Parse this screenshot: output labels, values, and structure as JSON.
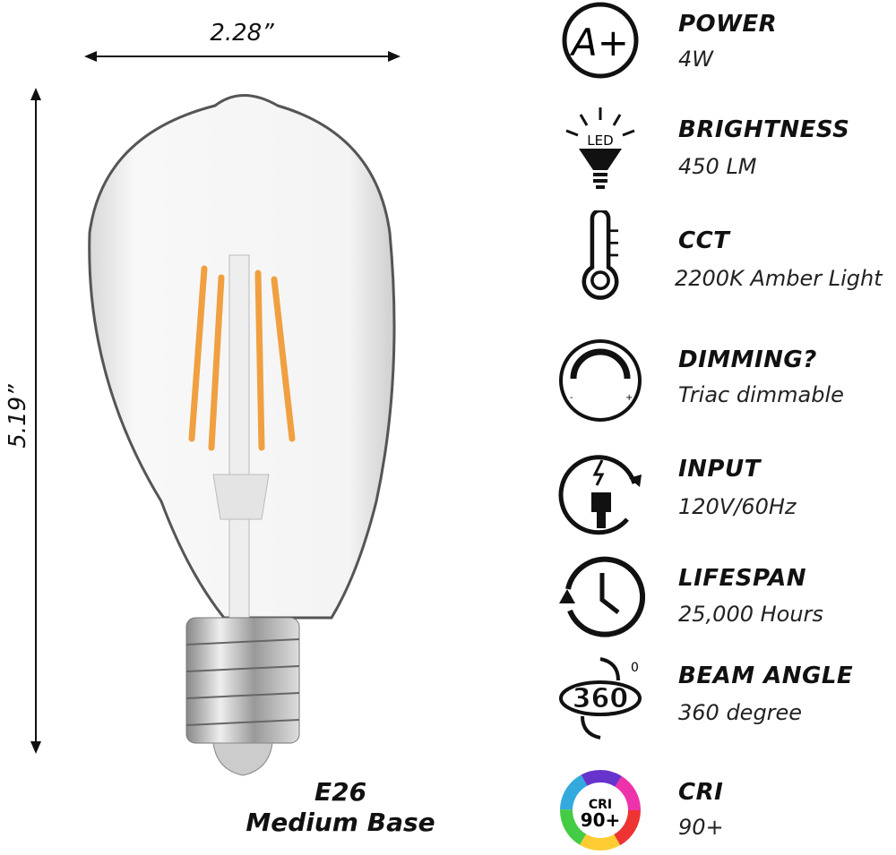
{
  "dimensions": {
    "width": "2.28”",
    "height": "5.19”"
  },
  "base": {
    "line1": "E26",
    "line2": "Medium Base"
  },
  "specs": [
    {
      "icon": "a-plus-icon",
      "label": "POWER",
      "value": "4W"
    },
    {
      "icon": "led-bulb-icon",
      "label": "BRIGHTNESS",
      "value": "450 LM",
      "icon_text": "LED"
    },
    {
      "icon": "thermometer-icon",
      "label": "CCT",
      "value": "2200K Amber Light"
    },
    {
      "icon": "dimmer-icon",
      "label": "DIMMING?",
      "value": "Triac dimmable"
    },
    {
      "icon": "plug-icon",
      "label": "INPUT",
      "value": "120V/60Hz"
    },
    {
      "icon": "clock-icon",
      "label": "LIFESPAN",
      "value": "25,000 Hours"
    },
    {
      "icon": "360-rotation-icon",
      "label": "BEAM ANGLE",
      "value": "360 degree",
      "icon_text": "360"
    },
    {
      "icon": "color-wheel-icon",
      "label": "CRI",
      "value": "90+",
      "icon_text": "CRI 90+"
    }
  ],
  "colors": {
    "filament": "#f0a040",
    "text": "#111111"
  }
}
